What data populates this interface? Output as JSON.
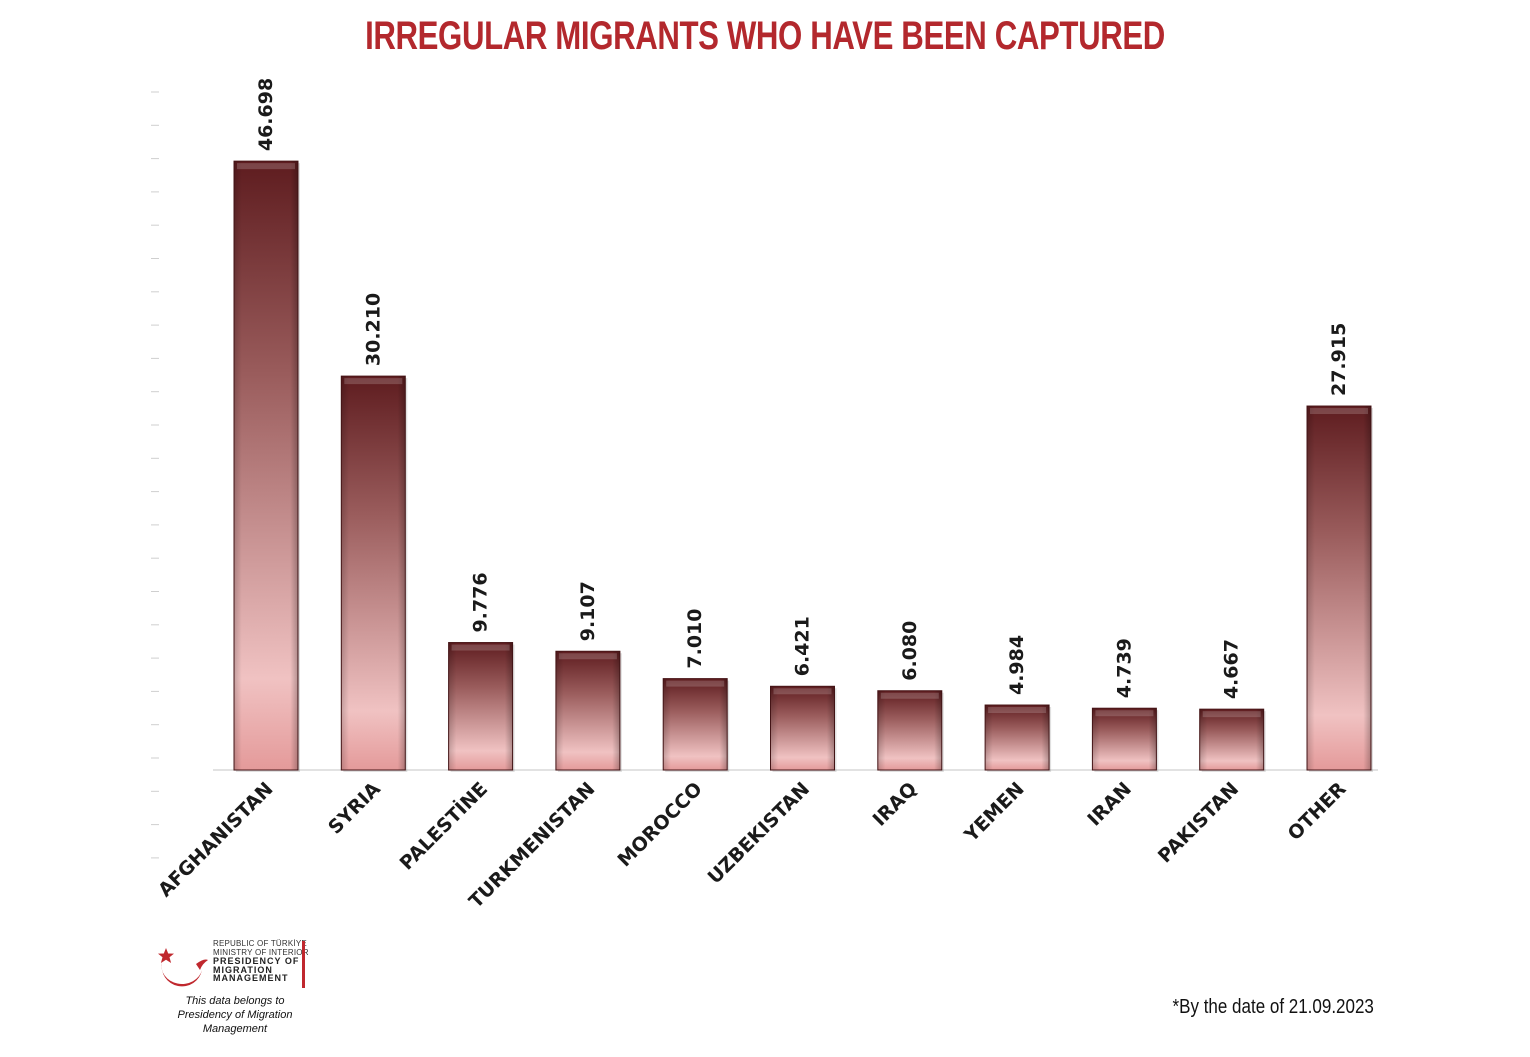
{
  "chart_data": {
    "type": "bar",
    "title": "IRREGULAR MIGRANTS WHO HAVE BEEN CAPTURED",
    "categories": [
      "AFGHANISTAN",
      "SYRIA",
      "PALESTİNE",
      "TURKMENISTAN",
      "MOROCCO",
      "UZBEKISTAN",
      "IRAQ",
      "YEMEN",
      "IRAN",
      "PAKISTAN",
      "OTHER"
    ],
    "values": [
      46698,
      30210,
      9776,
      9107,
      7010,
      6421,
      6080,
      4984,
      4739,
      4667,
      27915
    ],
    "value_labels": [
      "46.698",
      "30.210",
      "9.776",
      "9.107",
      "7.010",
      "6.421",
      "6.080",
      "4.984",
      "4.739",
      "4.667",
      "27.915"
    ],
    "ylim": [
      0,
      52000
    ],
    "grid": false,
    "colors": {
      "bar_dark": "#6b2426",
      "bar_light": "#f2c0c0",
      "title": "#b3282d"
    }
  },
  "footer": {
    "logo_lines": [
      "REPUBLIC OF TÜRKİYE",
      "MINISTRY OF INTERIOR",
      "PRESIDENCY OF",
      "MIGRATION MANAGEMENT"
    ],
    "data_owner_line1": "This data belongs to",
    "data_owner_line2": "Presidency of Migration Management",
    "date_note": "*By the date of 21.09.2023"
  }
}
